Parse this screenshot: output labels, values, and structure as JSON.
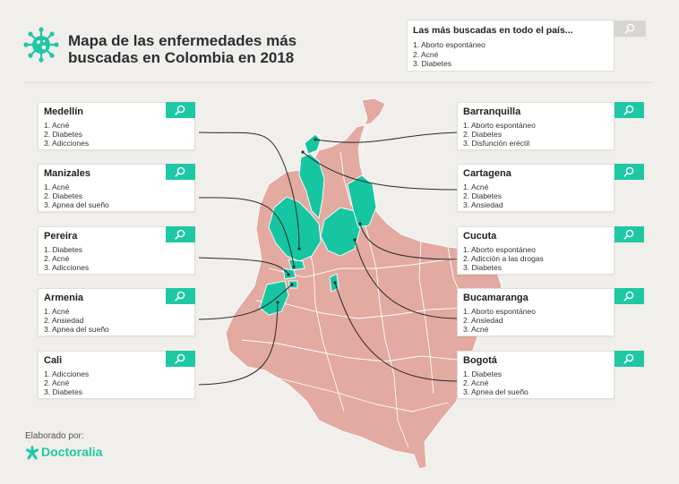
{
  "title": "Mapa de las enfermedades más buscadas en Colombia en 2018",
  "country": {
    "title": "Las más buscadas en todo el país...",
    "items": [
      "1. Aborto espontáneo",
      "2. Acné",
      "3. Diabetes"
    ]
  },
  "cities_left": [
    {
      "name": "Medellín",
      "items": [
        "1. Acné",
        "2. Diabetes",
        "3. Adicciones"
      ]
    },
    {
      "name": "Manizales",
      "items": [
        "1. Acné",
        "2. Diabetes",
        "3. Apnea del sueño"
      ]
    },
    {
      "name": "Pereira",
      "items": [
        "1. Diabetes",
        "2. Acné",
        "3. Adicciones"
      ]
    },
    {
      "name": "Armenia",
      "items": [
        "1. Acné",
        "2. Ansiedad",
        "3. Apnea del sueño"
      ]
    },
    {
      "name": "Cali",
      "items": [
        "1. Adicciones",
        "2. Acné",
        "3. Diabetes"
      ]
    }
  ],
  "cities_right": [
    {
      "name": "Barranquilla",
      "items": [
        "1. Aborto espontáneo",
        "2. Diabetes",
        "3. Disfunción eréctil"
      ]
    },
    {
      "name": "Cartagena",
      "items": [
        "1. Acné",
        "2. Diabetes",
        "3. Ansiedad"
      ]
    },
    {
      "name": "Cucuta",
      "items": [
        "1. Aborto espontáneo",
        "2. Adicción a las drogas",
        "3. Diabetes"
      ]
    },
    {
      "name": "Bucamaranga",
      "items": [
        "1. Aborto espontáneo",
        "2. Ansiedad",
        "3. Acné"
      ]
    },
    {
      "name": "Bogotá",
      "items": [
        "1. Diabetes",
        "2. Acné",
        "3. Apnea del sueño"
      ]
    }
  ],
  "footer": {
    "made_by": "Elaborado por:",
    "brand": "Doctoralia"
  },
  "colors": {
    "accent": "#1ec8a5",
    "map": "#e2aaa1",
    "highlight": "#16c6a3"
  },
  "icons": {
    "logo": "virus-icon",
    "button": "search-icon",
    "brand": "doctoralia-star-icon"
  }
}
